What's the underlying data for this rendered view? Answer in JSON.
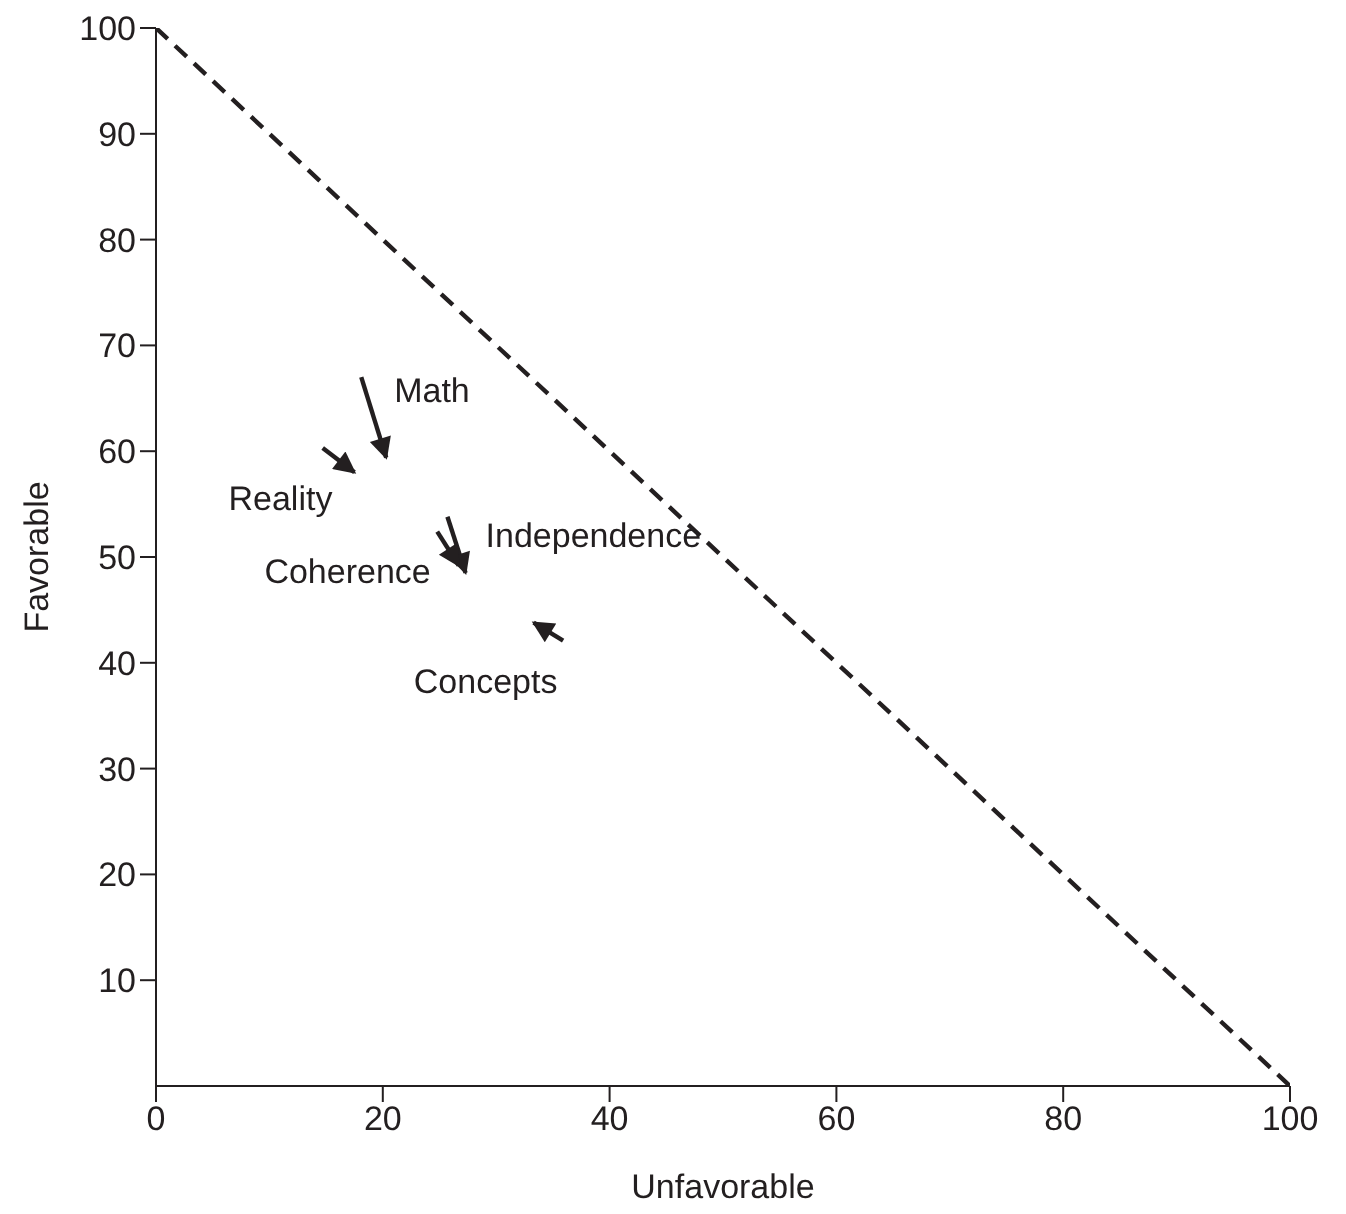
{
  "chart_data": {
    "type": "line",
    "xlabel": "Unfavorable",
    "ylabel": "Favorable",
    "xlim": [
      0,
      100
    ],
    "ylim": [
      0,
      100
    ],
    "xticks": [
      0,
      20,
      40,
      60,
      80,
      100
    ],
    "yticks": [
      10,
      20,
      30,
      40,
      50,
      60,
      70,
      80,
      90,
      100
    ],
    "grid": false,
    "legend": false,
    "series": [
      {
        "color": "#231f20",
        "line_style": "dashed",
        "x": [
          0,
          100
        ],
        "values": [
          100,
          0
        ]
      },
      {
        "name": "Math",
        "color": "#231f20",
        "x": [
          18.1,
          20.3
        ],
        "values": [
          67.0,
          59.4
        ]
      },
      {
        "name": "Reality",
        "color": "#231f20",
        "x": [
          14.7,
          17.5
        ],
        "values": [
          60.3,
          58.0
        ]
      },
      {
        "name": "Independence",
        "color": "#231f20",
        "x": [
          25.7,
          27.3
        ],
        "values": [
          53.8,
          48.5
        ]
      },
      {
        "name": "Coherence",
        "color": "#231f20",
        "x": [
          24.8,
          26.7
        ],
        "values": [
          52.4,
          49.2
        ]
      },
      {
        "name": "Concepts",
        "color": "#231f20",
        "x": [
          35.9,
          33.3
        ],
        "values": [
          42.1,
          43.8
        ]
      }
    ]
  }
}
